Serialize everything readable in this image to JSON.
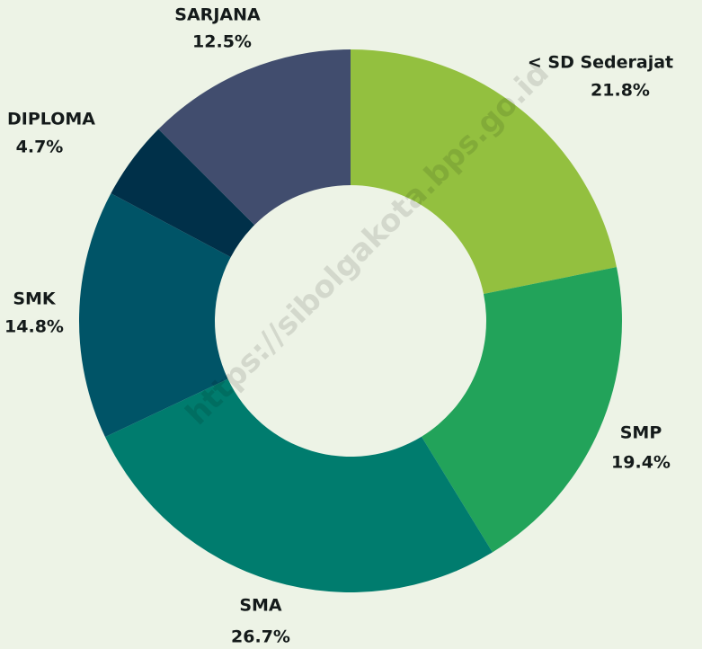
{
  "chart_data": {
    "type": "donut",
    "categories": [
      "< SD Sederajat",
      "SMP",
      "SMA",
      "SMK",
      "DIPLOMA",
      "SARJANA"
    ],
    "values": [
      21.8,
      19.4,
      26.7,
      14.8,
      4.7,
      12.5
    ],
    "value_labels": [
      "21.8%",
      "19.4%",
      "26.7%",
      "14.8%",
      "4.7%",
      "12.5%"
    ],
    "colors": [
      "#93c03f",
      "#22a35a",
      "#007c6e",
      "#005467",
      "#003049",
      "#414d6e"
    ],
    "watermark": "https://sibolgakota.bps.go.id"
  }
}
